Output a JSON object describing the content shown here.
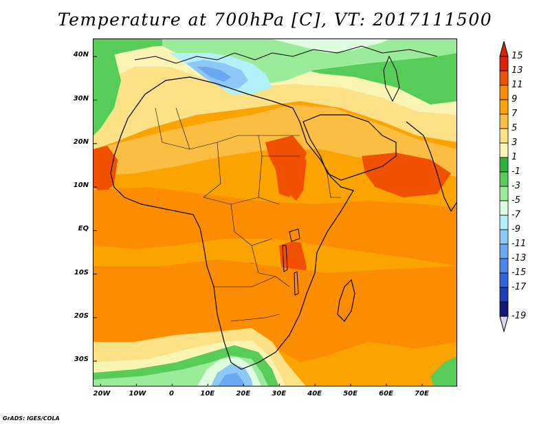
{
  "title": "Temperature at 700hPa [C], VT: 2017111500",
  "footer": "GrADS: IGES/COLA",
  "map": {
    "variable": "Temperature at 700hPa",
    "units": "C",
    "valid_time": "2017111500",
    "lon_range": [
      -22,
      80
    ],
    "lat_range": [
      -36,
      44
    ],
    "lat_ticks": [
      {
        "value": 40,
        "label": "40N"
      },
      {
        "value": 30,
        "label": "30N"
      },
      {
        "value": 20,
        "label": "20N"
      },
      {
        "value": 10,
        "label": "10N"
      },
      {
        "value": 0,
        "label": "EQ"
      },
      {
        "value": -10,
        "label": "10S"
      },
      {
        "value": -20,
        "label": "20S"
      },
      {
        "value": -30,
        "label": "30S"
      }
    ],
    "lon_ticks": [
      {
        "value": -20,
        "label": "20W"
      },
      {
        "value": -10,
        "label": "10W"
      },
      {
        "value": 0,
        "label": "0"
      },
      {
        "value": 10,
        "label": "10E"
      },
      {
        "value": 20,
        "label": "20E"
      },
      {
        "value": 30,
        "label": "30E"
      },
      {
        "value": 40,
        "label": "40E"
      },
      {
        "value": 50,
        "label": "50E"
      },
      {
        "value": 60,
        "label": "60E"
      },
      {
        "value": 70,
        "label": "70E"
      }
    ]
  },
  "legend": {
    "labels": [
      "15",
      "13",
      "11",
      "9",
      "7",
      "5",
      "3",
      "1",
      "-1",
      "-3",
      "-5",
      "-7",
      "-9",
      "-11",
      "-13",
      "-15",
      "-17",
      "-19"
    ],
    "colors": [
      "#dd2200",
      "#f05000",
      "#fc8c00",
      "#fba300",
      "#fbbd42",
      "#fde186",
      "#fbf5b4",
      "#2db33d",
      "#58cc58",
      "#9aeb9a",
      "#dffedf",
      "#b4f0fa",
      "#8dc8f8",
      "#6aa8f3",
      "#4b87ea",
      "#2e64df",
      "#1d40b9",
      "#131778"
    ],
    "top_arrow_color": "#dd2200",
    "bottom_arrow_color": "#dcd6f5"
  },
  "field_colors": {
    "hot": "#f05000",
    "warm11": "#fc8c00",
    "warm9": "#fba300",
    "warm7": "#fbbd42",
    "warm5": "#fde186",
    "cool3": "#fbf5b4",
    "green1": "#2db33d",
    "greenm1": "#58cc58",
    "lightgreen": "#9aeb9a",
    "pale": "#dffedf",
    "cyan": "#b4f0fa",
    "blue": "#8dc8f8",
    "blue2": "#6aa8f3"
  }
}
